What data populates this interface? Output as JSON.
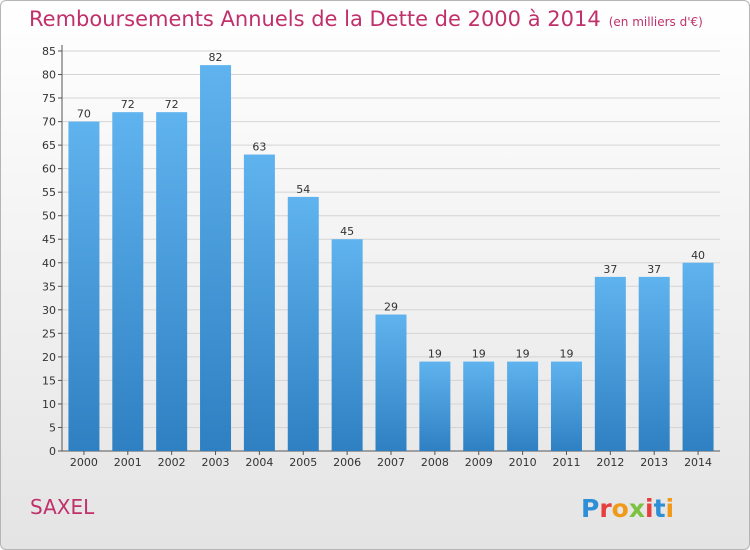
{
  "title": "Remboursements Annuels de la Dette de 2000 à 2014",
  "unit_note": "(en milliers d'€)",
  "place": "SAXEL",
  "logo_text": "Proxiti",
  "colors": {
    "title": "#c0306a",
    "bar_light": "#5fb3ee",
    "bar_dark": "#2f80c2",
    "grid": "#d4d4d4"
  },
  "chart_data": {
    "type": "bar",
    "title": "Remboursements Annuels de la Dette de 2000 à 2014",
    "categories": [
      "2000",
      "2001",
      "2002",
      "2003",
      "2004",
      "2005",
      "2006",
      "2007",
      "2008",
      "2009",
      "2010",
      "2011",
      "2012",
      "2013",
      "2014"
    ],
    "values": [
      70,
      72,
      72,
      82,
      63,
      54,
      45,
      29,
      19,
      19,
      19,
      19,
      37,
      37,
      40
    ],
    "xlabel": "",
    "ylabel": "",
    "ylim": [
      0,
      85
    ],
    "yticks": [
      0,
      5,
      10,
      15,
      20,
      25,
      30,
      35,
      40,
      45,
      50,
      55,
      60,
      65,
      70,
      75,
      80,
      85
    ],
    "grid": true,
    "data_labels": true
  }
}
